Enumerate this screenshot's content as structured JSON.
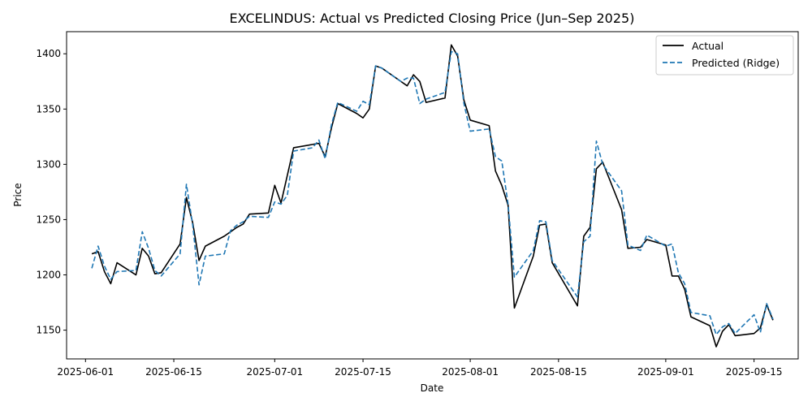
{
  "chart_data": {
    "type": "line",
    "title": "EXCELINDUS: Actual vs Predicted Closing Price (Jun–Sep 2025)",
    "xlabel": "Date",
    "ylabel": "Price",
    "x_ticks": [
      "2025-06-01",
      "2025-06-15",
      "2025-07-01",
      "2025-07-15",
      "2025-08-01",
      "2025-08-15",
      "2025-09-01",
      "2025-09-15"
    ],
    "y_ticks": [
      1150,
      1200,
      1250,
      1300,
      1350,
      1400
    ],
    "xlim": [
      "2025-05-29",
      "2025-09-22"
    ],
    "ylim": [
      1124,
      1420
    ],
    "grid": false,
    "legend_position": "top-right",
    "x": [
      "2025-06-02",
      "2025-06-03",
      "2025-06-04",
      "2025-06-05",
      "2025-06-06",
      "2025-06-09",
      "2025-06-10",
      "2025-06-11",
      "2025-06-12",
      "2025-06-13",
      "2025-06-16",
      "2025-06-17",
      "2025-06-18",
      "2025-06-19",
      "2025-06-20",
      "2025-06-23",
      "2025-06-24",
      "2025-06-25",
      "2025-06-26",
      "2025-06-27",
      "2025-06-30",
      "2025-07-01",
      "2025-07-02",
      "2025-07-03",
      "2025-07-04",
      "2025-07-07",
      "2025-07-08",
      "2025-07-09",
      "2025-07-10",
      "2025-07-11",
      "2025-07-14",
      "2025-07-15",
      "2025-07-16",
      "2025-07-17",
      "2025-07-18",
      "2025-07-21",
      "2025-07-22",
      "2025-07-23",
      "2025-07-24",
      "2025-07-25",
      "2025-07-28",
      "2025-07-29",
      "2025-07-30",
      "2025-07-31",
      "2025-08-01",
      "2025-08-04",
      "2025-08-05",
      "2025-08-06",
      "2025-08-07",
      "2025-08-08",
      "2025-08-11",
      "2025-08-12",
      "2025-08-13",
      "2025-08-14",
      "2025-08-18",
      "2025-08-19",
      "2025-08-20",
      "2025-08-21",
      "2025-08-22",
      "2025-08-25",
      "2025-08-26",
      "2025-08-28",
      "2025-08-29",
      "2025-09-01",
      "2025-09-02",
      "2025-09-03",
      "2025-09-04",
      "2025-09-05",
      "2025-09-08",
      "2025-09-09",
      "2025-09-10",
      "2025-09-11",
      "2025-09-12",
      "2025-09-15",
      "2025-09-16",
      "2025-09-17",
      "2025-09-18"
    ],
    "series": [
      {
        "name": "Actual",
        "color": "#000000",
        "style": "solid",
        "values": [
          1219,
          1221,
          1203,
          1192,
          1211,
          1200,
          1224,
          1217,
          1201,
          1202,
          1228,
          1270,
          1247,
          1213,
          1226,
          1235,
          1239,
          1243,
          1246,
          1255,
          1256,
          1281,
          1265,
          1290,
          1315,
          1318,
          1319,
          1307,
          1333,
          1355,
          1346,
          1342,
          1350,
          1389,
          1387,
          1375,
          1371,
          1381,
          1375,
          1356,
          1360,
          1408,
          1398,
          1358,
          1340,
          1335,
          1294,
          1281,
          1263,
          1170,
          1217,
          1245,
          1246,
          1211,
          1172,
          1235,
          1243,
          1296,
          1302,
          1259,
          1224,
          1225,
          1232,
          1227,
          1199,
          1199,
          1187,
          1162,
          1154,
          1135,
          1149,
          1155,
          1145,
          1147,
          1152,
          1173,
          1159
        ]
      },
      {
        "name": "Predicted (Ridge)",
        "color": "#1f77b4",
        "style": "dashed",
        "values": [
          1206,
          1226,
          1208,
          1196,
          1203,
          1204,
          1239,
          1224,
          1204,
          1199,
          1219,
          1282,
          1245,
          1191,
          1217,
          1219,
          1240,
          1245,
          1248,
          1253,
          1252,
          1266,
          1264,
          1272,
          1312,
          1315,
          1322,
          1305,
          1336,
          1356,
          1348,
          1357,
          1354,
          1389,
          1387,
          1375,
          1378,
          1378,
          1355,
          1359,
          1365,
          1402,
          1400,
          1355,
          1330,
          1332,
          1307,
          1303,
          1264,
          1198,
          1222,
          1249,
          1248,
          1213,
          1180,
          1230,
          1235,
          1321,
          1300,
          1276,
          1227,
          1222,
          1236,
          1226,
          1228,
          1202,
          1192,
          1166,
          1163,
          1146,
          1153,
          1156,
          1147,
          1164,
          1148,
          1174,
          1160
        ]
      }
    ]
  }
}
